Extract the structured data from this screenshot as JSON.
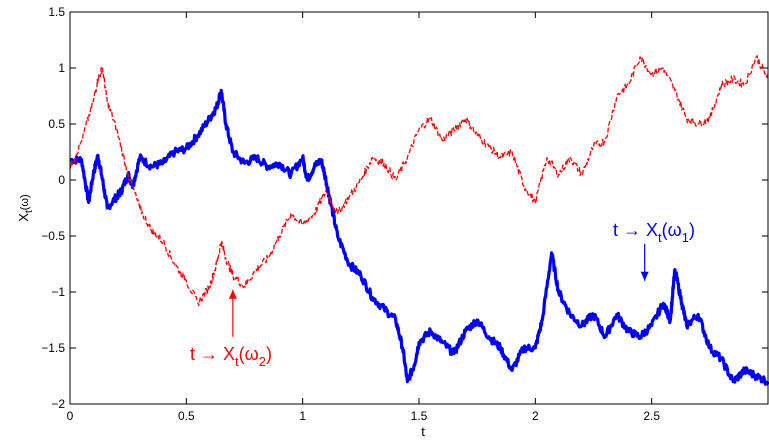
{
  "chart_data": {
    "type": "line",
    "title": "",
    "xlabel": "t",
    "ylabel_main": "X",
    "ylabel_sub": "t",
    "ylabel_paren": "(ω)",
    "xlim": [
      0,
      3
    ],
    "ylim": [
      -2,
      1.5
    ],
    "xticks": [
      0,
      0.5,
      1,
      1.5,
      2,
      2.5
    ],
    "xtick_labels": [
      "0",
      "0.5",
      "1",
      "1.5",
      "2",
      "2.5"
    ],
    "yticks": [
      -2,
      -1.5,
      -1,
      -0.5,
      0,
      0.5,
      1,
      1.5
    ],
    "ytick_labels": [
      "−2",
      "−1.5",
      "−1",
      "−0.5",
      "0",
      "0.5",
      "1",
      "1.5"
    ],
    "grid": false,
    "legend": "none",
    "series": [
      {
        "color": "#0000ff",
        "style": "thick",
        "x": [
          0,
          0.05,
          0.08,
          0.1,
          0.12,
          0.14,
          0.16,
          0.2,
          0.22,
          0.25,
          0.27,
          0.3,
          0.35,
          0.4,
          0.45,
          0.5,
          0.55,
          0.6,
          0.63,
          0.65,
          0.67,
          0.7,
          0.75,
          0.8,
          0.85,
          0.9,
          0.95,
          1.0,
          1.02,
          1.05,
          1.08,
          1.1,
          1.12,
          1.15,
          1.2,
          1.25,
          1.3,
          1.35,
          1.4,
          1.43,
          1.45,
          1.48,
          1.5,
          1.55,
          1.6,
          1.65,
          1.7,
          1.75,
          1.8,
          1.85,
          1.9,
          1.95,
          2.0,
          2.03,
          2.07,
          2.1,
          2.15,
          2.2,
          2.25,
          2.3,
          2.35,
          2.4,
          2.45,
          2.5,
          2.55,
          2.58,
          2.6,
          2.63,
          2.65,
          2.7,
          2.75,
          2.8,
          2.85,
          2.9,
          2.95,
          3.0
        ],
        "y": [
          0.18,
          0.18,
          -0.2,
          0.05,
          0.22,
          0.0,
          -0.25,
          -0.15,
          -0.1,
          0.05,
          -0.05,
          0.2,
          0.12,
          0.15,
          0.25,
          0.28,
          0.4,
          0.55,
          0.65,
          0.8,
          0.5,
          0.25,
          0.15,
          0.2,
          0.12,
          0.15,
          0.05,
          0.2,
          0.0,
          0.12,
          0.18,
          0.0,
          -0.2,
          -0.5,
          -0.75,
          -0.85,
          -1.05,
          -1.15,
          -1.25,
          -1.5,
          -1.8,
          -1.65,
          -1.45,
          -1.35,
          -1.45,
          -1.55,
          -1.35,
          -1.25,
          -1.4,
          -1.5,
          -1.7,
          -1.5,
          -1.5,
          -1.25,
          -0.65,
          -1.0,
          -1.2,
          -1.3,
          -1.2,
          -1.4,
          -1.2,
          -1.35,
          -1.4,
          -1.3,
          -1.1,
          -1.25,
          -0.8,
          -1.1,
          -1.3,
          -1.2,
          -1.5,
          -1.6,
          -1.8,
          -1.7,
          -1.75,
          -1.8
        ]
      },
      {
        "color": "#ff0000",
        "style": "dashed",
        "x": [
          0,
          0.05,
          0.1,
          0.12,
          0.14,
          0.16,
          0.2,
          0.25,
          0.3,
          0.35,
          0.4,
          0.45,
          0.5,
          0.55,
          0.6,
          0.63,
          0.65,
          0.67,
          0.7,
          0.75,
          0.8,
          0.85,
          0.9,
          0.95,
          1.0,
          1.05,
          1.1,
          1.15,
          1.2,
          1.25,
          1.3,
          1.35,
          1.4,
          1.45,
          1.5,
          1.55,
          1.6,
          1.65,
          1.7,
          1.75,
          1.8,
          1.85,
          1.9,
          1.95,
          2.0,
          2.05,
          2.1,
          2.15,
          2.2,
          2.25,
          2.3,
          2.35,
          2.4,
          2.45,
          2.5,
          2.55,
          2.6,
          2.65,
          2.7,
          2.75,
          2.8,
          2.85,
          2.9,
          2.95,
          3.0
        ],
        "y": [
          0.1,
          0.35,
          0.7,
          0.9,
          1.0,
          0.7,
          0.45,
          0.05,
          -0.25,
          -0.45,
          -0.55,
          -0.75,
          -0.9,
          -1.1,
          -0.95,
          -0.75,
          -0.55,
          -0.7,
          -0.85,
          -0.95,
          -0.8,
          -0.7,
          -0.5,
          -0.3,
          -0.4,
          -0.3,
          -0.1,
          -0.3,
          -0.15,
          0.0,
          0.2,
          0.15,
          0.0,
          0.2,
          0.45,
          0.55,
          0.35,
          0.45,
          0.55,
          0.4,
          0.3,
          0.2,
          0.25,
          -0.05,
          -0.2,
          0.2,
          0.05,
          0.2,
          0.05,
          0.3,
          0.35,
          0.75,
          0.85,
          1.1,
          0.95,
          1.0,
          0.8,
          0.55,
          0.5,
          0.55,
          0.85,
          0.9,
          0.85,
          1.1,
          0.9
        ]
      }
    ],
    "annotations": [
      {
        "id": "omega1",
        "text_main": "t → X",
        "text_sub": "t",
        "text_paren_open": "(ω",
        "text_paren_sub": "1",
        "text_paren_close": ")",
        "color": "#0000ff",
        "arrow_to": [
          2.47,
          -0.9
        ],
        "arrow_from": [
          2.47,
          -0.57
        ]
      },
      {
        "id": "omega2",
        "text_main": "t → X",
        "text_sub": "t",
        "text_paren_open": "(ω",
        "text_paren_sub": "2",
        "text_paren_close": ")",
        "color": "#ff0000",
        "arrow_to": [
          0.7,
          -0.98
        ],
        "arrow_from": [
          0.7,
          -1.4
        ]
      }
    ]
  }
}
